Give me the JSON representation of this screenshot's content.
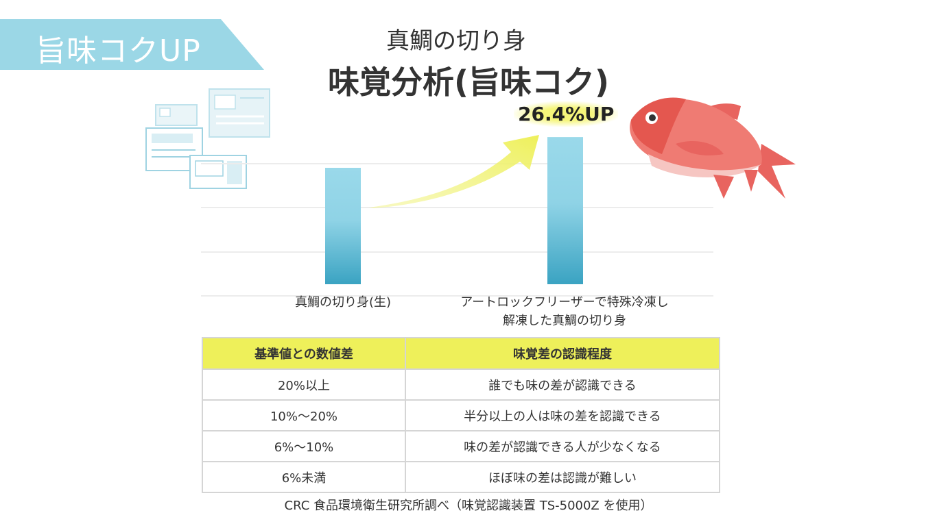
{
  "banner": {
    "label": "旨味コクUP",
    "color": "#9bd7e6"
  },
  "header": {
    "subtitle": "真鯛の切り身",
    "title": "味覚分析(旨味コク)"
  },
  "chart_data": {
    "type": "bar",
    "categories": [
      "真鯛の切り身(生)",
      "アートロックフリーザーで特殊冷凍し\n解凍した真鯛の切り身"
    ],
    "values": [
      1.0,
      1.264
    ],
    "annotations": [
      {
        "target": 1,
        "text": "26.4%UP"
      }
    ],
    "grid": true,
    "bar_color": "#3ba7c6"
  },
  "table": {
    "headers": [
      "基準値との数値差",
      "味覚差の認識程度"
    ],
    "rows": [
      [
        "20%以上",
        "誰でも味の差が認識できる"
      ],
      [
        "10%〜20%",
        "半分以上の人は味の差を認識できる"
      ],
      [
        "6%〜10%",
        "味の差が認識できる人が少なくなる"
      ],
      [
        "6%未満",
        "ほぼ味の差は認識が難しい"
      ]
    ]
  },
  "source": "CRC 食品環境衛生研究所調べ（味覚認識装置 TS-5000Z を使用）"
}
